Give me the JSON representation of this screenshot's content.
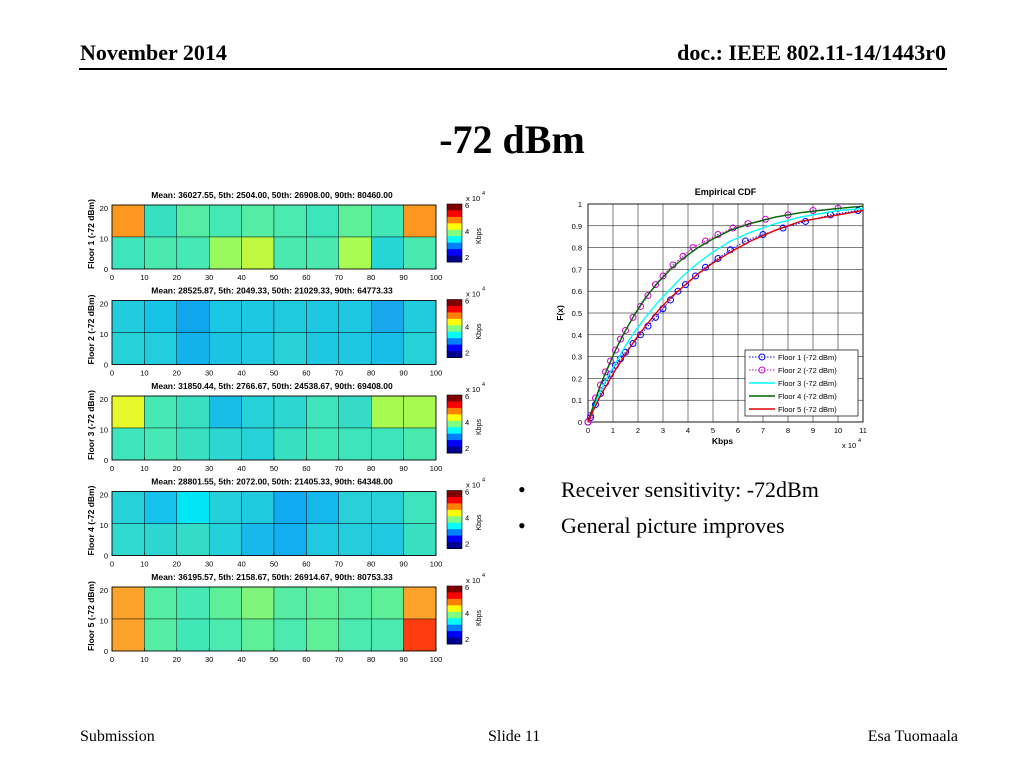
{
  "header": {
    "left": "November 2014",
    "right": "doc.: IEEE 802.11-14/1443r0"
  },
  "title": "-72 dBm",
  "colorbar": {
    "exponent_label": "x 10",
    "exponent_power": "4",
    "unit": "Kbps",
    "ticks": [
      "6",
      "4",
      "2"
    ],
    "colors": [
      "#00008f",
      "#0000ff",
      "#0080ff",
      "#00ffff",
      "#80ff80",
      "#ffff00",
      "#ff8000",
      "#ff0000",
      "#800000"
    ]
  },
  "heatmaps": [
    {
      "ylabel": "Floor 1 (-72 dBm)",
      "title": "Mean: 36027.55, 5th: 2504.00, 50th: 26908.00, 90th: 80460.00",
      "x_ticks": [
        "0",
        "10",
        "20",
        "30",
        "40",
        "50",
        "60",
        "70",
        "80",
        "90",
        "100"
      ],
      "y_ticks": [
        "20",
        "10",
        "0"
      ],
      "rows": [
        [
          "#fd9720",
          "#38e0c2",
          "#54eda2",
          "#46e8b4",
          "#54eda2",
          "#4aeab0",
          "#3be6bc",
          "#5ef098",
          "#42e7b8",
          "#fd9720"
        ],
        [
          "#3ee4bc",
          "#4ae9b0",
          "#46e8b4",
          "#9bf960",
          "#bff83e",
          "#4ae9b0",
          "#4ae9b0",
          "#a8fc52",
          "#26d6d6",
          "#4ae9b0"
        ]
      ]
    },
    {
      "ylabel": "Floor 2 (-72 dBm)",
      "title": "Mean: 28525.87, 5th: 2049.33, 50th: 21029.33, 90th: 64773.33",
      "x_ticks": [
        "0",
        "10",
        "20",
        "30",
        "40",
        "50",
        "60",
        "70",
        "80",
        "90",
        "100"
      ],
      "y_ticks": [
        "20",
        "10",
        "0"
      ],
      "rows": [
        [
          "#22ccdc",
          "#18c4e6",
          "#0fa6ee",
          "#1ac6e4",
          "#1ec8e2",
          "#20cadf",
          "#1ec8e2",
          "#1ec8e2",
          "#1aa8ec",
          "#22ccdc"
        ],
        [
          "#26d2d8",
          "#22cede",
          "#14b2ec",
          "#1cc4e4",
          "#20c8e0",
          "#28d2d6",
          "#1ec8e2",
          "#1ec8e2",
          "#18bee6",
          "#26d2d8"
        ]
      ]
    },
    {
      "ylabel": "Floor 3 (-72 dBm)",
      "title": "Mean: 31850.44, 5th: 2766.67, 50th: 24538.67, 90th: 69408.00",
      "x_ticks": [
        "0",
        "10",
        "20",
        "30",
        "40",
        "50",
        "60",
        "70",
        "80",
        "90",
        "100"
      ],
      "y_ticks": [
        "20",
        "10",
        "0"
      ],
      "rows": [
        [
          "#e6f82a",
          "#46e8b4",
          "#38e0c2",
          "#18bee6",
          "#26d2d8",
          "#2ed6d2",
          "#3ee4bc",
          "#34dcc8",
          "#a8fa50",
          "#a8fa50"
        ],
        [
          "#3ee4bc",
          "#46e8b4",
          "#38e0c2",
          "#2ed6d2",
          "#26d2d8",
          "#38e0c2",
          "#42e7b8",
          "#3ee4bc",
          "#3ee4bc",
          "#4ae9b0"
        ]
      ]
    },
    {
      "ylabel": "Floor 4 (-72 dBm)",
      "title": "Mean: 28801.55, 5th: 2072.00, 50th: 21405.33, 90th: 64348.00",
      "x_ticks": [
        "0",
        "10",
        "20",
        "30",
        "40",
        "50",
        "60",
        "70",
        "80",
        "90",
        "100"
      ],
      "y_ticks": [
        "20",
        "10",
        "0"
      ],
      "rows": [
        [
          "#26d2d8",
          "#14c2ec",
          "#00e6f6",
          "#24d0dc",
          "#20cadf",
          "#10aaf0",
          "#14b8ea",
          "#28d0d8",
          "#28d0d8",
          "#3ee4bc"
        ],
        [
          "#30dad0",
          "#2ed6d2",
          "#34dcc8",
          "#24d0dc",
          "#18b8ea",
          "#12aef0",
          "#20c8e0",
          "#24ccdc",
          "#20c8e0",
          "#38e0c2"
        ]
      ]
    },
    {
      "ylabel": "Floor 5 (-72 dBm)",
      "title": "Mean: 36195.57, 5th: 2158.67, 50th: 26914.67, 90th: 80753.33",
      "x_ticks": [
        "0",
        "10",
        "20",
        "30",
        "40",
        "50",
        "60",
        "70",
        "80",
        "90",
        "100"
      ],
      "y_ticks": [
        "20",
        "10",
        "0"
      ],
      "rows": [
        [
          "#fda22a",
          "#54eda2",
          "#46e8b4",
          "#5ef098",
          "#80f47a",
          "#54eda2",
          "#5ef098",
          "#54eda2",
          "#5ef098",
          "#fda22a"
        ],
        [
          "#fda22a",
          "#54eda2",
          "#42e7b8",
          "#4aeab0",
          "#5ef098",
          "#4aeab0",
          "#5ef098",
          "#4aeab0",
          "#4aeab0",
          "#fd3c10"
        ]
      ]
    }
  ],
  "chart_data": {
    "type": "line",
    "title": "Empirical CDF",
    "xlabel": "Kbps",
    "ylabel": "F(x)",
    "x_exponent": "x 10",
    "x_exponent_power": "4",
    "xlim": [
      0,
      110000
    ],
    "ylim": [
      0,
      1
    ],
    "x_ticks": [
      "0",
      "1",
      "2",
      "3",
      "4",
      "5",
      "6",
      "7",
      "8",
      "9",
      "10",
      "11"
    ],
    "y_ticks": [
      "0",
      "0.1",
      "0.2",
      "0.3",
      "0.4",
      "0.5",
      "0.6",
      "0.7",
      "0.8",
      "0.9",
      "1"
    ],
    "grid": true,
    "legend_position": "bottom-right",
    "series": [
      {
        "name": "Floor 1 (-72 dBm)",
        "color": "#0000ff",
        "style": "dotted",
        "marker": "circle",
        "x": [
          0,
          1000,
          3000,
          5000,
          7000,
          9000,
          11000,
          13000,
          15000,
          18000,
          21000,
          24000,
          27000,
          30000,
          33000,
          36000,
          39000,
          43000,
          47000,
          52000,
          57000,
          63000,
          70000,
          78000,
          87000,
          97000,
          108000
        ],
        "y": [
          0,
          0.02,
          0.08,
          0.13,
          0.18,
          0.22,
          0.26,
          0.29,
          0.32,
          0.36,
          0.4,
          0.44,
          0.48,
          0.52,
          0.56,
          0.6,
          0.63,
          0.67,
          0.71,
          0.75,
          0.79,
          0.83,
          0.86,
          0.89,
          0.92,
          0.95,
          0.97
        ]
      },
      {
        "name": "Floor 2 (-72 dBm)",
        "color": "#cc00cc",
        "style": "dotted",
        "marker": "circle",
        "x": [
          0,
          1000,
          3000,
          5000,
          7000,
          9000,
          11000,
          13000,
          15000,
          18000,
          21000,
          24000,
          27000,
          30000,
          34000,
          38000,
          42000,
          47000,
          52000,
          58000,
          64000,
          71000,
          80000,
          90000,
          100000
        ],
        "y": [
          0,
          0.03,
          0.11,
          0.17,
          0.23,
          0.28,
          0.33,
          0.38,
          0.42,
          0.48,
          0.53,
          0.58,
          0.63,
          0.67,
          0.72,
          0.76,
          0.8,
          0.83,
          0.86,
          0.89,
          0.91,
          0.93,
          0.95,
          0.97,
          0.98
        ]
      },
      {
        "name": "Floor 3 (-72 dBm)",
        "color": "#00ffff",
        "style": "solid",
        "marker": "none",
        "x": [
          0,
          2000,
          5000,
          8000,
          11000,
          15000,
          19000,
          23000,
          28000,
          33000,
          38000,
          44000,
          50000,
          57000,
          65000,
          75000,
          85000,
          100000,
          110000
        ],
        "y": [
          0,
          0.06,
          0.14,
          0.21,
          0.27,
          0.35,
          0.42,
          0.48,
          0.55,
          0.61,
          0.67,
          0.73,
          0.78,
          0.83,
          0.87,
          0.91,
          0.94,
          0.97,
          0.98
        ]
      },
      {
        "name": "Floor 4 (-72 dBm)",
        "color": "#006400",
        "style": "solid",
        "marker": "none",
        "x": [
          0,
          2000,
          5000,
          8000,
          11000,
          15000,
          19000,
          23000,
          28000,
          33000,
          38000,
          44000,
          50000,
          57000,
          65000,
          75000,
          85000,
          100000,
          110000
        ],
        "y": [
          0,
          0.07,
          0.17,
          0.25,
          0.33,
          0.42,
          0.5,
          0.57,
          0.64,
          0.7,
          0.75,
          0.8,
          0.84,
          0.88,
          0.91,
          0.94,
          0.96,
          0.98,
          0.99
        ]
      },
      {
        "name": "Floor 5 (-72 dBm)",
        "color": "#e00000",
        "style": "solid",
        "marker": "none",
        "x": [
          0,
          2000,
          5000,
          8000,
          11000,
          15000,
          19000,
          23000,
          28000,
          33000,
          38000,
          44000,
          50000,
          57000,
          65000,
          75000,
          85000,
          100000,
          110000
        ],
        "y": [
          0,
          0.05,
          0.12,
          0.18,
          0.24,
          0.31,
          0.38,
          0.44,
          0.51,
          0.57,
          0.62,
          0.68,
          0.73,
          0.78,
          0.83,
          0.88,
          0.92,
          0.95,
          0.97
        ]
      }
    ]
  },
  "bullets": [
    {
      "symbol": "•",
      "text": "Receiver sensitivity: -72dBm"
    },
    {
      "symbol": "•",
      "text": "General picture improves"
    }
  ],
  "footer": {
    "left": "Submission",
    "middle": "Slide 11",
    "right": "Esa Tuomaala"
  }
}
